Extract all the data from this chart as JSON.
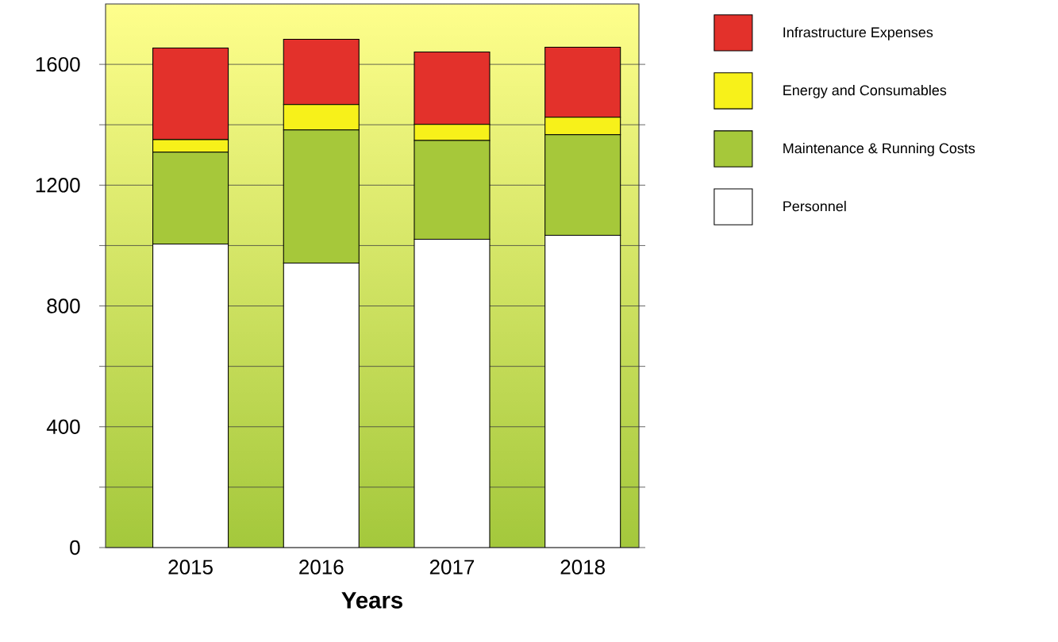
{
  "chart_data": {
    "type": "bar",
    "stacked": true,
    "xlabel": "Years",
    "categories": [
      "2015",
      "2016",
      "2017",
      "2018"
    ],
    "series": [
      {
        "name": "Personnel",
        "color": "#ffffff",
        "values": [
          1005,
          942,
          1021,
          1034
        ]
      },
      {
        "name": "Maintenance & Running Costs",
        "color": "#a6c83a",
        "values": [
          304,
          441,
          327,
          333
        ]
      },
      {
        "name": "Energy and Consumables",
        "color": "#f7f11a",
        "values": [
          42,
          84,
          53,
          58
        ]
      },
      {
        "name": "Infrastructure Expenses",
        "color": "#e3312b",
        "values": [
          303,
          216,
          240,
          232
        ]
      }
    ],
    "ylim": [
      0,
      1800
    ],
    "yticks": [
      0,
      {
        "value": 200,
        "label": null
      },
      400,
      {
        "value": 600,
        "label": null
      },
      800,
      {
        "value": 1000,
        "label": null
      },
      1200,
      {
        "value": 1400,
        "label": null
      },
      1600
    ],
    "grid": "y",
    "legend": "right"
  }
}
